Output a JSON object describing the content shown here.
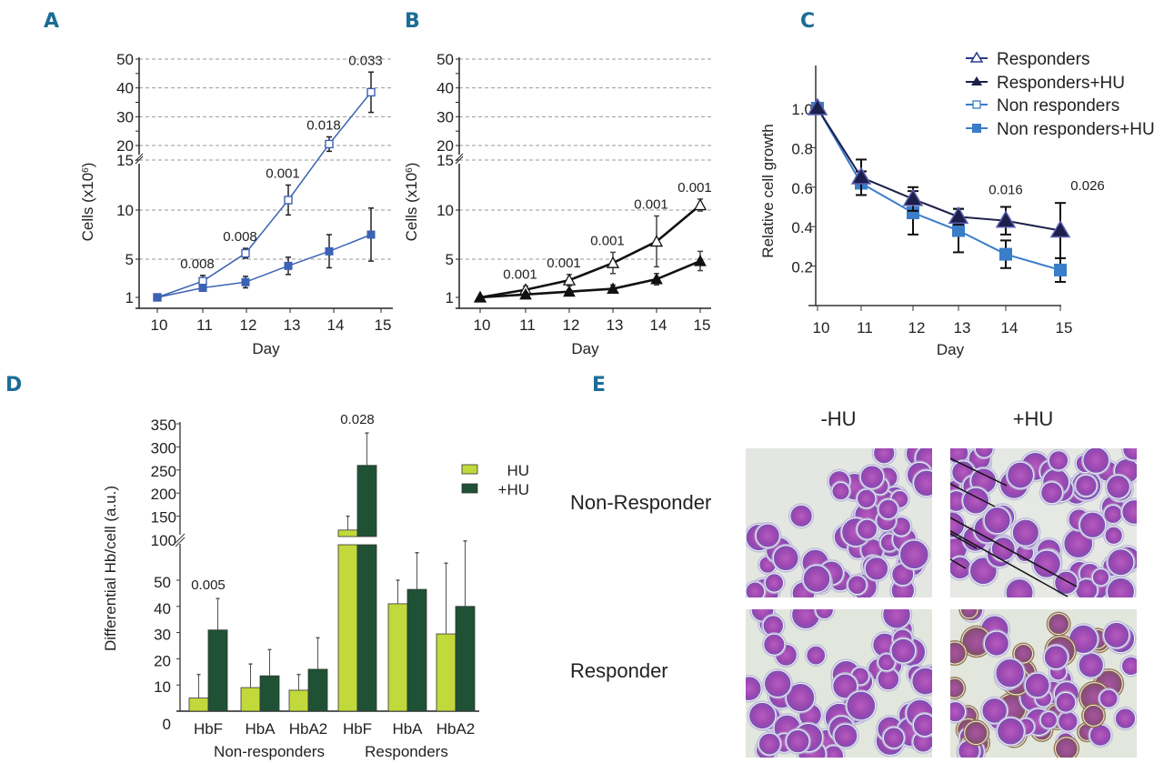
{
  "panel_letters": [
    "A",
    "B",
    "C",
    "D",
    "E"
  ],
  "chart_data": [
    {
      "id": "A",
      "type": "line",
      "title": "",
      "xlabel": "Day",
      "ylabel": "Cells (x10⁶)",
      "ylabel_main": "Cells (x10",
      "ylabel_sup": "6",
      "ylabel_close": ")",
      "x": [
        10,
        11,
        12,
        13,
        14,
        15
      ],
      "x_ticks": [
        "10",
        "11",
        "12",
        "13",
        "14",
        "15"
      ],
      "y_ticks_lower": [
        "1",
        "5",
        "10",
        "15"
      ],
      "y_ticks_upper": [
        "20",
        "30",
        "40",
        "50"
      ],
      "ylim": [
        1,
        50
      ],
      "axis_break": "between 15 and 20",
      "grid": "dashed horizontal at 5, 10, 15, 20, 30, 40, 50",
      "series": [
        {
          "name": "Non responders",
          "marker": "open-square",
          "color": "#3b62b4",
          "values": [
            1,
            2.7,
            5.6,
            11,
            20.5,
            38.5
          ],
          "err": [
            0,
            0.6,
            0.5,
            1.5,
            2.5,
            7
          ]
        },
        {
          "name": "Non responders+HU",
          "marker": "filled-square",
          "color": "#3b62b4",
          "values": [
            1,
            2,
            2.6,
            4.3,
            5.8,
            7.5
          ],
          "err": [
            0,
            0.2,
            0.6,
            0.9,
            1.7,
            2.7
          ]
        }
      ],
      "annotations": [
        {
          "day": 11,
          "text": "0.008"
        },
        {
          "day": 12,
          "text": "0.008"
        },
        {
          "day": 13,
          "text": "0.001"
        },
        {
          "day": 14,
          "text": "0.018"
        },
        {
          "day": 15,
          "text": "0.033"
        }
      ]
    },
    {
      "id": "B",
      "type": "line",
      "title": "",
      "xlabel": "Day",
      "ylabel": "Cells (x10⁶)",
      "ylabel_main": "Cells (x10",
      "ylabel_sup": "6",
      "ylabel_close": ")",
      "x": [
        10,
        11,
        12,
        13,
        14,
        15
      ],
      "x_ticks": [
        "10",
        "11",
        "12",
        "13",
        "14",
        "15"
      ],
      "y_ticks_lower": [
        "1",
        "5",
        "10",
        "15"
      ],
      "y_ticks_upper": [
        "20",
        "30",
        "40",
        "50"
      ],
      "ylim": [
        1,
        50
      ],
      "axis_break": "between 15 and 20",
      "grid": "dashed horizontal at 5, 10, 15, 20, 30, 40, 50",
      "series": [
        {
          "name": "Responders",
          "marker": "open-triangle",
          "color": "#111111",
          "values": [
            1,
            1.8,
            2.8,
            4.6,
            6.8,
            10.5
          ],
          "err": [
            0,
            0.4,
            0.6,
            1.1,
            2.6,
            0.6
          ]
        },
        {
          "name": "Responders+HU",
          "marker": "filled-triangle",
          "color": "#111111",
          "values": [
            1,
            1.3,
            1.6,
            1.9,
            2.9,
            4.8
          ],
          "err": [
            0,
            0.2,
            0.2,
            0.4,
            0.6,
            1.0
          ]
        }
      ],
      "annotations": [
        {
          "day": 11,
          "text": "0.001"
        },
        {
          "day": 12,
          "text": "0.001"
        },
        {
          "day": 13,
          "text": "0.001"
        },
        {
          "day": 14,
          "text": "0.001"
        },
        {
          "day": 15,
          "text": "0.001"
        }
      ]
    },
    {
      "id": "C",
      "type": "line",
      "title": "",
      "xlabel": "Day",
      "ylabel": "Relative cell growth",
      "x": [
        10,
        11,
        12,
        13,
        14,
        15
      ],
      "x_ticks": [
        "10",
        "11",
        "12",
        "13",
        "14",
        "15"
      ],
      "y_ticks": [
        "0.2",
        "0.4",
        "0.6",
        "0.8",
        "1.0"
      ],
      "ylim": [
        0,
        1.2
      ],
      "grid": "off",
      "legend_position": "top-right",
      "series": [
        {
          "name": "Responders",
          "marker": "open-triangle",
          "color": "#2b3a86",
          "values": [
            1.0,
            0.65,
            0.54,
            0.45,
            0.43,
            0.38
          ],
          "err": [
            0,
            0.09,
            0.06,
            0.04,
            0.07,
            0.14
          ]
        },
        {
          "name": "Responders+HU",
          "marker": "filled-triangle",
          "color": "#1c1f4a",
          "values": [
            1.0,
            0.65,
            0.54,
            0.45,
            0.43,
            0.38
          ],
          "err": [
            0,
            0.09,
            0.06,
            0.04,
            0.07,
            0.14
          ]
        },
        {
          "name": "Non responders",
          "marker": "open-square",
          "color": "#3a7dc9",
          "values": [
            1.0,
            0.62,
            0.47,
            0.38,
            0.26,
            0.18
          ],
          "err": [
            0,
            0.06,
            0.11,
            0.11,
            0.07,
            0.06
          ]
        },
        {
          "name": "Non responders+HU",
          "marker": "filled-square",
          "color": "#3a7dc9",
          "values": [
            1.0,
            0.62,
            0.47,
            0.38,
            0.26,
            0.18
          ],
          "err": [
            0,
            0.06,
            0.11,
            0.11,
            0.07,
            0.06
          ]
        }
      ],
      "annotations": [
        {
          "day": 14,
          "text": "0.016"
        },
        {
          "day": 15,
          "text": "0.026"
        }
      ]
    },
    {
      "id": "D",
      "type": "bar",
      "title": "",
      "xlabel": "",
      "ylabel": "Differential Hb/cell (a.u.)",
      "categories": [
        "HbF",
        "HbA",
        "HbA2",
        "HbF",
        "HbA",
        "HbA2"
      ],
      "groups": [
        {
          "label": "Non-responders",
          "categories": [
            0,
            1,
            2
          ]
        },
        {
          "label": "Responders",
          "categories": [
            3,
            4,
            5
          ]
        }
      ],
      "y_ticks_lower": [
        "0",
        "10",
        "20",
        "30",
        "40",
        "50"
      ],
      "y_ticks_upper": [
        "100",
        "150",
        "200",
        "250",
        "300",
        "350"
      ],
      "ylim": [
        0,
        350
      ],
      "axis_break": "between 50 and 100",
      "legend_position": "right",
      "series": [
        {
          "name": "HU",
          "color": "#c2d93b",
          "values": [
            5,
            9,
            8,
            120,
            41,
            29.5
          ],
          "err": [
            9,
            9,
            6,
            30,
            9,
            27
          ]
        },
        {
          "name": "+HU",
          "color": "#1f5235",
          "values": [
            31,
            13.5,
            16,
            260,
            46.5,
            40
          ],
          "err": [
            12,
            10,
            12,
            70,
            14,
            25
          ]
        }
      ],
      "annotations": [
        {
          "category": 0,
          "text": "0.005"
        },
        {
          "category": 3,
          "text": "0.028"
        }
      ]
    }
  ],
  "panel_e": {
    "column_headers": [
      "-HU",
      "+HU"
    ],
    "row_headers": [
      "Non-Responder",
      "Responder"
    ],
    "images": [
      {
        "row": "Non-Responder",
        "col": "-HU",
        "description": "micrograph of stained cells"
      },
      {
        "row": "Non-Responder",
        "col": "+HU",
        "description": "micrograph of stained cells with arrows"
      },
      {
        "row": "Responder",
        "col": "-HU",
        "description": "micrograph of stained cells"
      },
      {
        "row": "Responder",
        "col": "+HU",
        "description": "micrograph with brown-stained cells"
      }
    ]
  }
}
